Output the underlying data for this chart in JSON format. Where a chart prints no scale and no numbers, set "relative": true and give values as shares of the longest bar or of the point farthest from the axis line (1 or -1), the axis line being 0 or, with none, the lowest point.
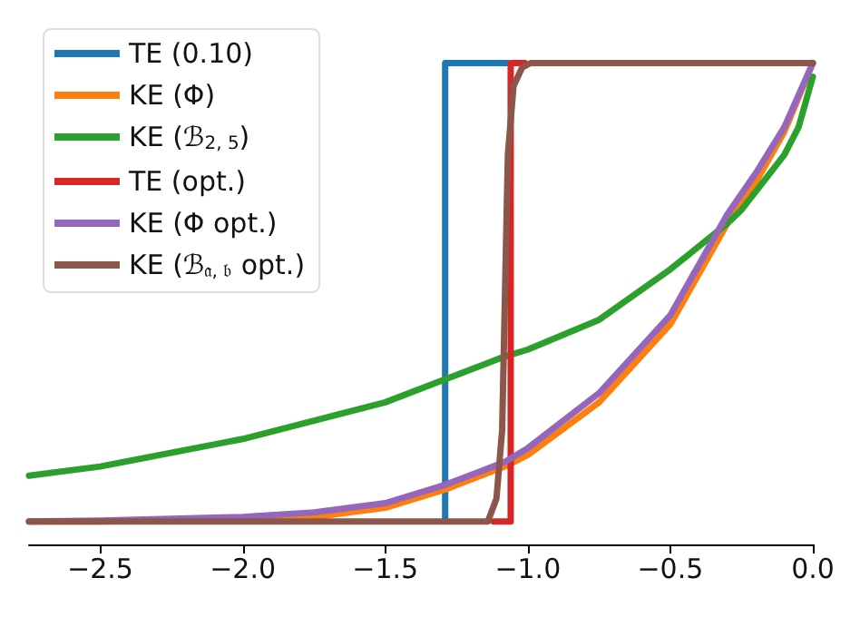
{
  "chart_data": {
    "type": "line",
    "relative": true,
    "xlim": [
      -2.75,
      0
    ],
    "xticks": [
      {
        "value": -2.5,
        "label": "−2.5"
      },
      {
        "value": -2.0,
        "label": "−2.0"
      },
      {
        "value": -1.5,
        "label": "−1.5"
      },
      {
        "value": -1.0,
        "label": "−1.0"
      },
      {
        "value": -0.5,
        "label": "−0.5"
      },
      {
        "value": 0,
        "label": "0.0"
      }
    ],
    "legend": "top left",
    "grid": false,
    "marker": "none",
    "line_style": "solid",
    "series": [
      {
        "name": "TE (0.10)",
        "color": "#1f77b4",
        "x": [
          -1.29,
          -1.29,
          -1.07
        ],
        "values": [
          0,
          1,
          1
        ]
      },
      {
        "name": "KE (Φ)",
        "color": "#ff7f0e",
        "x": [
          -2.75,
          -2.5,
          -2.0,
          -1.75,
          -1.5,
          -1.29,
          -1.08,
          -1.0,
          -0.75,
          -0.5,
          -0.3,
          -0.2,
          -0.1,
          0
        ],
        "values": [
          0,
          0,
          0.005,
          0.01,
          0.03,
          0.07,
          0.12,
          0.145,
          0.26,
          0.43,
          0.65,
          0.74,
          0.85,
          1
        ]
      },
      {
        "name": "KE (ℬ$_{2, 5}$)",
        "color": "#2ca02c",
        "x": [
          -2.75,
          -2.5,
          -2.0,
          -1.5,
          -1.29,
          -1.08,
          -1.0,
          -0.75,
          -0.5,
          -0.3,
          -0.25,
          -0.1,
          -0.05,
          0
        ],
        "values": [
          0.1,
          0.12,
          0.18,
          0.26,
          0.31,
          0.36,
          0.375,
          0.44,
          0.55,
          0.65,
          0.68,
          0.8,
          0.86,
          0.97
        ]
      },
      {
        "name": "TE (opt.)",
        "color": "#d62728",
        "x": [
          -1.12,
          -1.06,
          -1.06,
          -1.01
        ],
        "values": [
          0,
          0,
          1,
          1
        ]
      },
      {
        "name": "KE (Φ opt.)",
        "color": "#9467bd",
        "x": [
          -2.75,
          -2.5,
          -2.0,
          -1.75,
          -1.5,
          -1.29,
          -1.08,
          -1.0,
          -0.75,
          -0.5,
          -0.3,
          -0.2,
          -0.1,
          0
        ],
        "values": [
          0,
          0.002,
          0.01,
          0.02,
          0.04,
          0.08,
          0.13,
          0.16,
          0.28,
          0.45,
          0.67,
          0.76,
          0.86,
          1
        ]
      },
      {
        "name": "KE (ℬ$_{𝔞, 𝔟}$ opt.)",
        "color": "#8c564b",
        "x": [
          -2.75,
          -1.14,
          -1.11,
          -1.09,
          -1.08,
          -1.07,
          -1.05,
          -1.02,
          -0.99,
          0
        ],
        "values": [
          0,
          0,
          0.05,
          0.2,
          0.5,
          0.8,
          0.95,
          0.99,
          1,
          1
        ]
      }
    ]
  }
}
